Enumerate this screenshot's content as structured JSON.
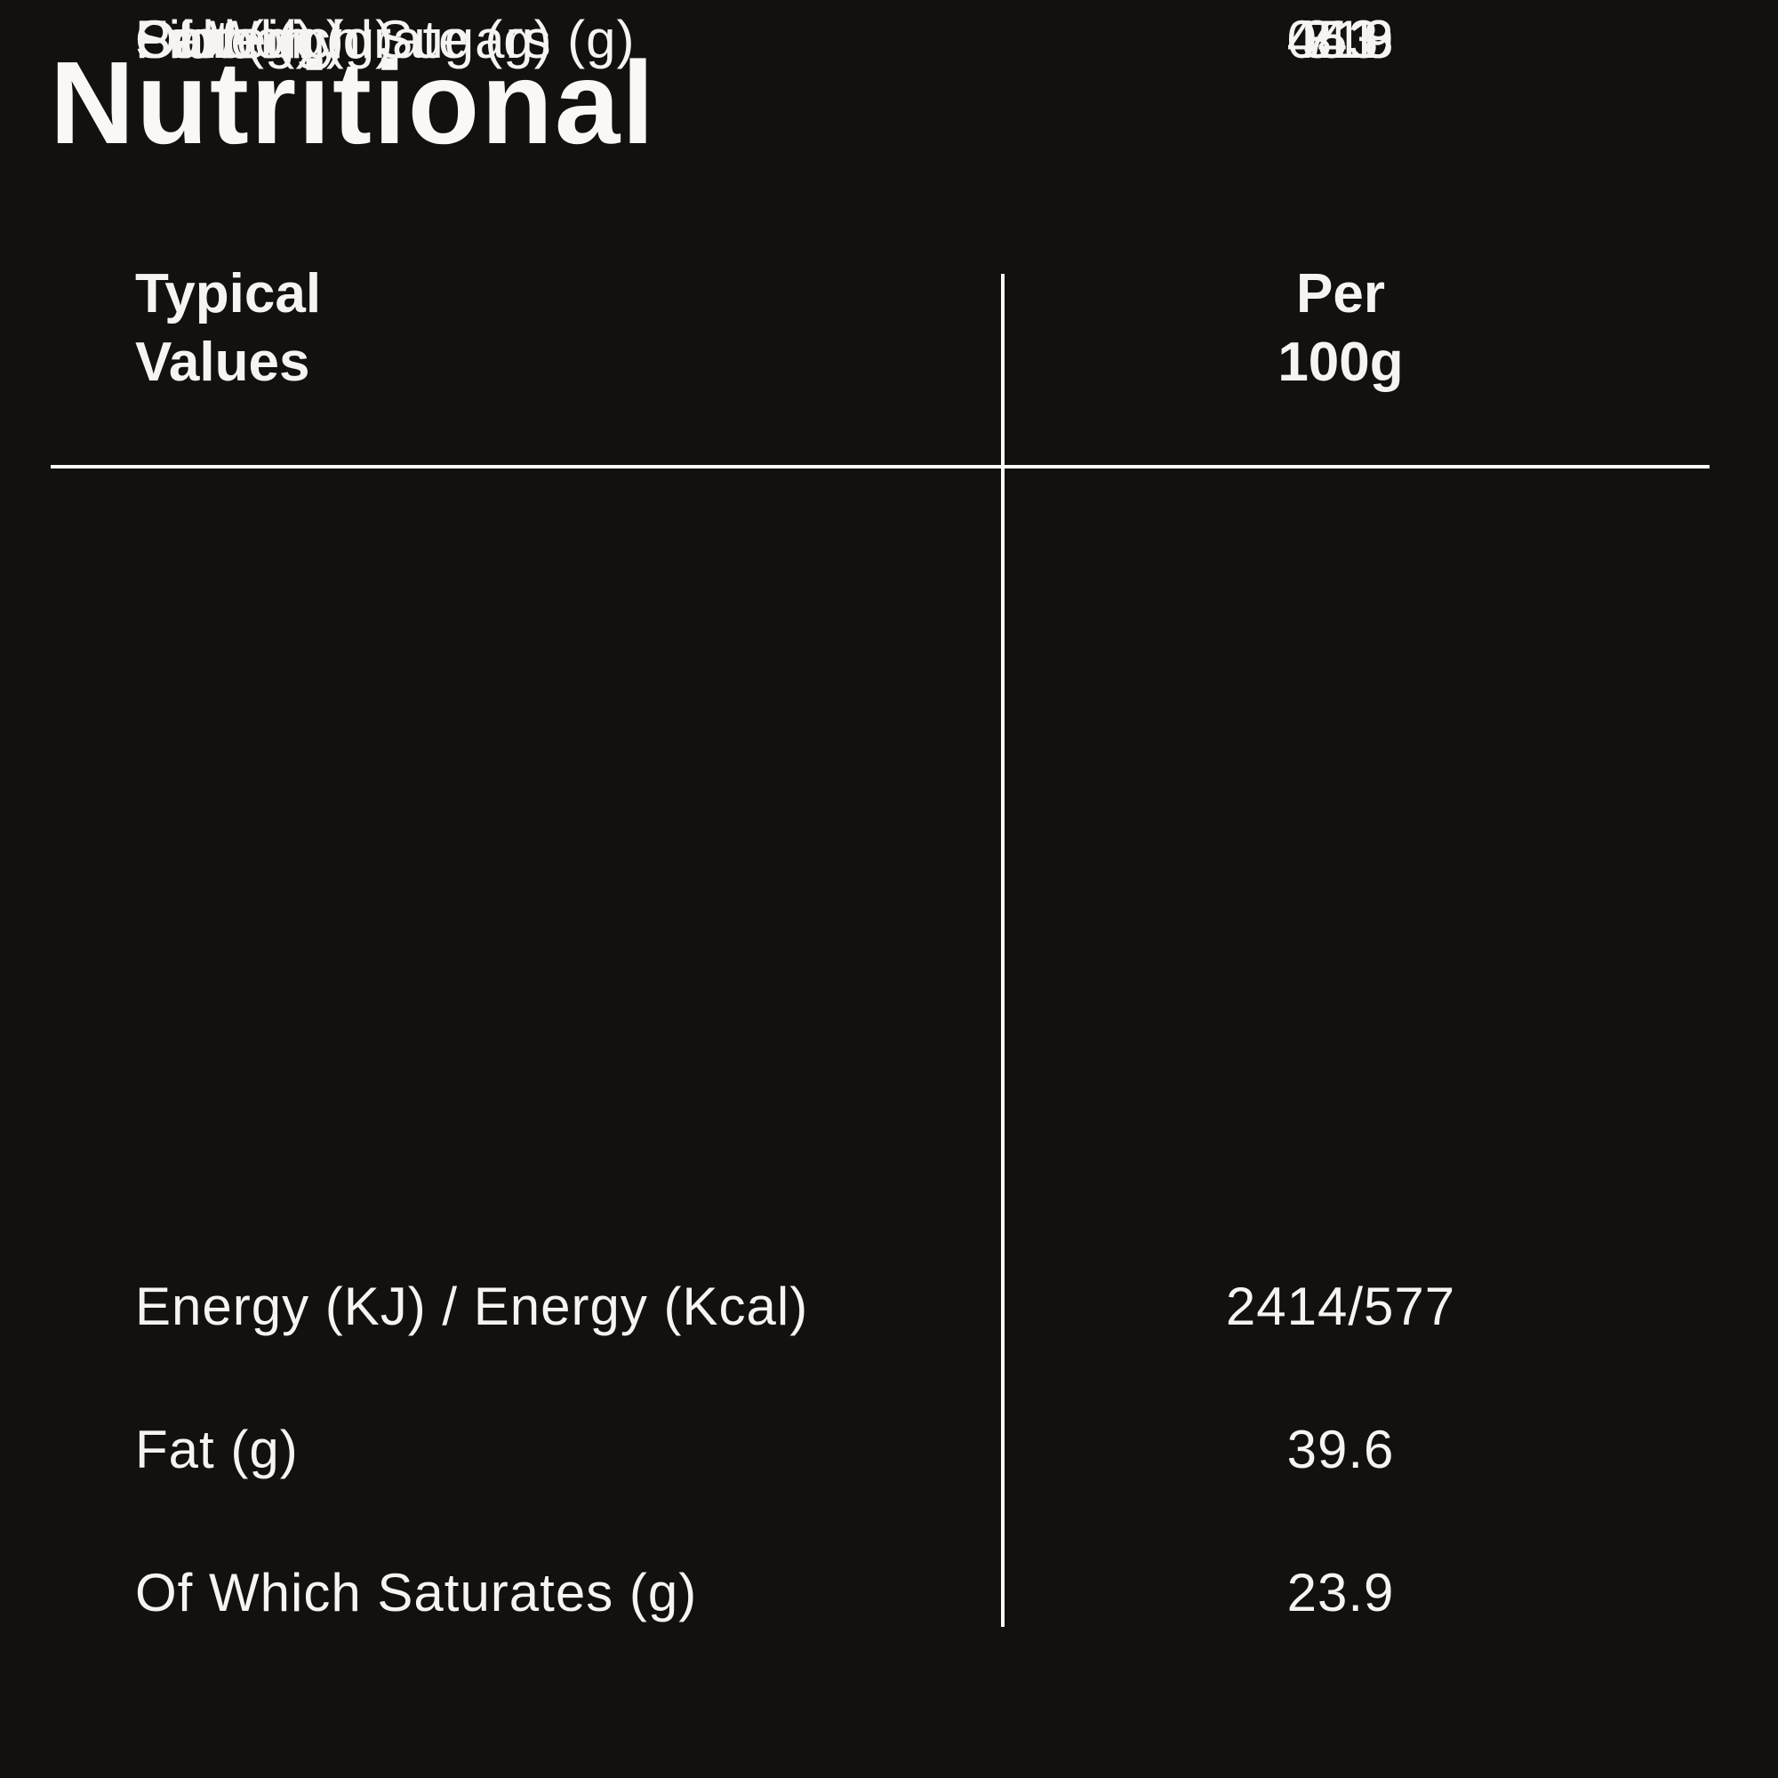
{
  "title": "Nutritional",
  "header": {
    "col1": {
      "line1": "Typical",
      "line2": "Values"
    },
    "col2": {
      "line1": "Per",
      "line2": "100g"
    }
  },
  "rows": [
    {
      "label": "Energy (KJ) / Energy (Kcal)",
      "value": "2414/577"
    },
    {
      "label": "Fat (g)",
      "value": "39.6"
    },
    {
      "label": "Of Which Saturates (g)",
      "value": "23.9"
    },
    {
      "label": "Carbohydrate (g)",
      "value": "45.8"
    },
    {
      "label": "Of Which Sugars (g)",
      "value": "44.8"
    },
    {
      "label": "Fibre (g)",
      "value": "3.1"
    },
    {
      "label": "Protein (g)",
      "value": "7.3"
    },
    {
      "label": "Salt (g)",
      "value": "0.19"
    }
  ],
  "colors": {
    "background": "#121110",
    "text": "#f6f4f1",
    "divider": "#fbfbfa"
  }
}
